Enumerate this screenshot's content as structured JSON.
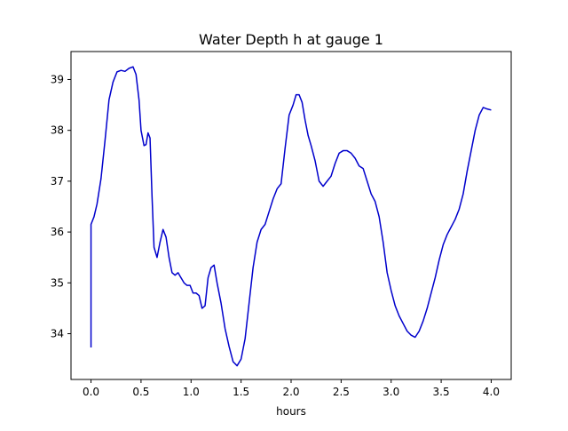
{
  "chart_data": {
    "type": "line",
    "title": "Water Depth h at gauge 1",
    "xlabel": "hours",
    "ylabel": "",
    "xlim": [
      -0.2,
      4.2
    ],
    "ylim": [
      33.1,
      39.55
    ],
    "xticks": [
      0.0,
      0.5,
      1.0,
      1.5,
      2.0,
      2.5,
      3.0,
      3.5,
      4.0
    ],
    "xtick_labels": [
      "0.0",
      "0.5",
      "1.0",
      "1.5",
      "2.0",
      "2.5",
      "3.0",
      "3.5",
      "4.0"
    ],
    "yticks": [
      34,
      35,
      36,
      37,
      38,
      39
    ],
    "ytick_labels": [
      "34",
      "35",
      "36",
      "37",
      "38",
      "39"
    ],
    "grid": false,
    "series": [
      {
        "color": "#0000cc",
        "x": [
          0.0,
          0.0,
          0.03,
          0.06,
          0.1,
          0.14,
          0.18,
          0.22,
          0.26,
          0.3,
          0.34,
          0.38,
          0.42,
          0.45,
          0.48,
          0.5,
          0.53,
          0.55,
          0.57,
          0.59,
          0.61,
          0.63,
          0.66,
          0.69,
          0.72,
          0.75,
          0.78,
          0.81,
          0.84,
          0.87,
          0.9,
          0.93,
          0.96,
          0.99,
          1.02,
          1.05,
          1.08,
          1.11,
          1.14,
          1.17,
          1.2,
          1.23,
          1.26,
          1.3,
          1.34,
          1.38,
          1.42,
          1.46,
          1.5,
          1.54,
          1.58,
          1.62,
          1.66,
          1.7,
          1.74,
          1.78,
          1.82,
          1.86,
          1.9,
          1.94,
          1.98,
          2.02,
          2.05,
          2.08,
          2.11,
          2.14,
          2.17,
          2.2,
          2.24,
          2.28,
          2.32,
          2.36,
          2.4,
          2.44,
          2.48,
          2.52,
          2.56,
          2.6,
          2.64,
          2.68,
          2.72,
          2.76,
          2.8,
          2.84,
          2.88,
          2.92,
          2.96,
          3.0,
          3.04,
          3.08,
          3.12,
          3.16,
          3.2,
          3.24,
          3.28,
          3.32,
          3.36,
          3.4,
          3.44,
          3.48,
          3.52,
          3.56,
          3.6,
          3.64,
          3.68,
          3.72,
          3.76,
          3.8,
          3.84,
          3.88,
          3.92,
          3.96,
          4.0
        ],
        "y": [
          33.73,
          36.15,
          36.3,
          36.55,
          37.05,
          37.8,
          38.6,
          38.95,
          39.15,
          39.18,
          39.16,
          39.22,
          39.25,
          39.1,
          38.6,
          38.0,
          37.7,
          37.72,
          37.95,
          37.85,
          36.7,
          35.7,
          35.5,
          35.8,
          36.05,
          35.9,
          35.5,
          35.2,
          35.15,
          35.2,
          35.1,
          35.0,
          34.95,
          34.95,
          34.8,
          34.8,
          34.75,
          34.5,
          34.55,
          35.1,
          35.3,
          35.35,
          35.0,
          34.6,
          34.1,
          33.75,
          33.45,
          33.37,
          33.5,
          33.9,
          34.6,
          35.3,
          35.8,
          36.05,
          36.15,
          36.4,
          36.65,
          36.85,
          36.95,
          37.65,
          38.3,
          38.5,
          38.7,
          38.7,
          38.55,
          38.2,
          37.9,
          37.7,
          37.4,
          37.0,
          36.9,
          37.0,
          37.1,
          37.35,
          37.55,
          37.6,
          37.6,
          37.55,
          37.45,
          37.3,
          37.25,
          37.0,
          36.75,
          36.6,
          36.3,
          35.8,
          35.2,
          34.85,
          34.55,
          34.35,
          34.2,
          34.05,
          33.97,
          33.93,
          34.05,
          34.25,
          34.5,
          34.8,
          35.1,
          35.45,
          35.75,
          35.95,
          36.1,
          36.25,
          36.45,
          36.75,
          37.2,
          37.6,
          38.0,
          38.3,
          38.45,
          38.42,
          38.4
        ]
      }
    ]
  }
}
